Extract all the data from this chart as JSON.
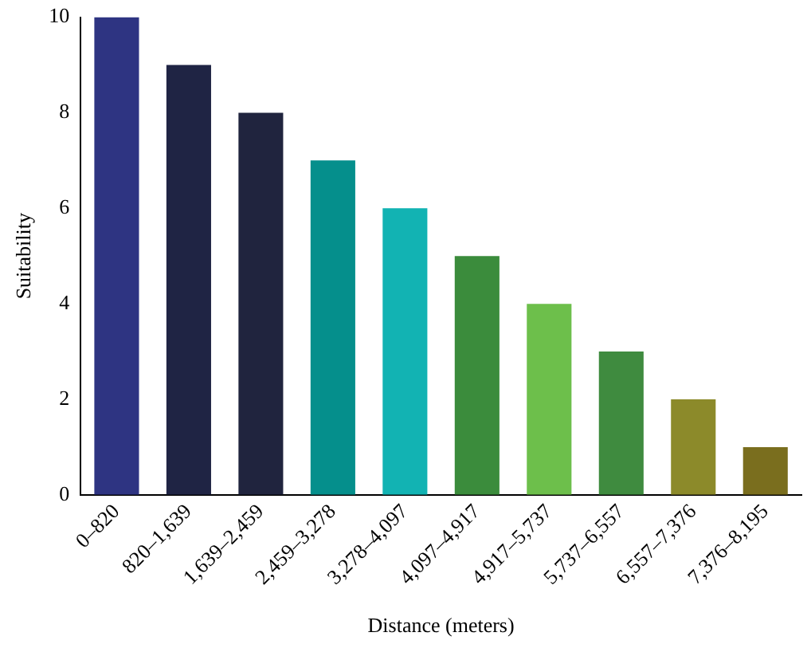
{
  "chart_data": {
    "type": "bar",
    "xlabel": "Distance (meters)",
    "ylabel": "Suitability",
    "categories": [
      "0–820",
      "820–1,639",
      "1,639–2,459",
      "2,459–3,278",
      "3,278–4,097",
      "4,097–4,917",
      "4,917–5,737",
      "5,737–6,557",
      "6,557–7,376",
      "7,376–8,195"
    ],
    "values": [
      10,
      9,
      8,
      7,
      6,
      5,
      4,
      3,
      2,
      1
    ],
    "colors": [
      "#2e3482",
      "#1f2444",
      "#20243e",
      "#058f8c",
      "#12b3b3",
      "#3b8c3c",
      "#6dbf4b",
      "#3f8b3f",
      "#8c8a2a",
      "#7a6e1e"
    ],
    "ylim": [
      0,
      10
    ],
    "yticks": [
      0,
      2,
      4,
      6,
      8,
      10
    ],
    "grid": false,
    "legend": false
  }
}
